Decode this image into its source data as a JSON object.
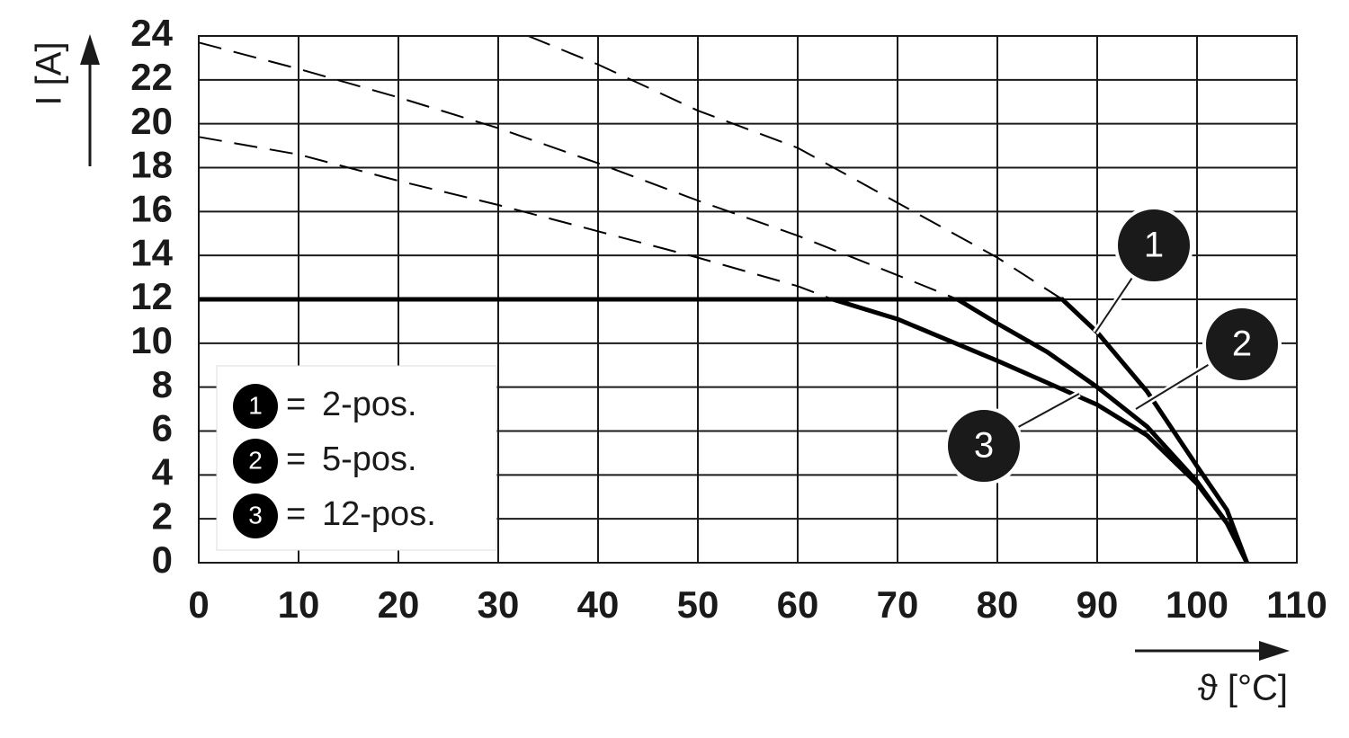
{
  "chart_data": {
    "type": "line",
    "x_label": "ϑ [°C]",
    "y_label": "I [A]",
    "xlim": [
      0,
      110
    ],
    "xticks": [
      0,
      10,
      20,
      30,
      40,
      50,
      60,
      70,
      80,
      90,
      100,
      110
    ],
    "ylim": [
      0,
      24
    ],
    "yticks": [
      0,
      2,
      4,
      6,
      8,
      10,
      12,
      14,
      16,
      18,
      20,
      22,
      24
    ],
    "grid": true,
    "legend_separator": "=",
    "series": [
      {
        "name": "2-pos.",
        "marker": "1",
        "color": "#000000",
        "x": [
          0,
          86.5,
          90,
          95,
          100,
          103,
          105
        ],
        "values": [
          12,
          12,
          10.5,
          7.8,
          4.4,
          2.4,
          0
        ],
        "extension_x": [
          33,
          40,
          50,
          60,
          70,
          80,
          86.5
        ],
        "extension_values": [
          24,
          22.7,
          20.6,
          18.9,
          16.4,
          13.9,
          12
        ]
      },
      {
        "name": "5-pos.",
        "marker": "2",
        "color": "#000000",
        "x": [
          0,
          76,
          80,
          85,
          90,
          95,
          100,
          103,
          105
        ],
        "values": [
          12,
          12,
          10.9,
          9.6,
          8,
          6.2,
          3.7,
          1.8,
          0
        ],
        "extension_x": [
          0,
          10,
          20,
          30,
          40,
          50,
          60,
          70,
          76
        ],
        "extension_values": [
          23.7,
          22.5,
          21.2,
          19.8,
          18.2,
          16.5,
          14.9,
          13.1,
          12
        ]
      },
      {
        "name": "12-pos.",
        "marker": "3",
        "color": "#000000",
        "x": [
          0,
          63.5,
          70,
          80,
          90,
          95,
          100,
          103,
          105
        ],
        "values": [
          12,
          12,
          11.1,
          9.2,
          7.2,
          5.8,
          3.6,
          1.8,
          0
        ],
        "extension_x": [
          0,
          10,
          20,
          30,
          40,
          50,
          60,
          63.5
        ],
        "extension_values": [
          19.4,
          18.6,
          17.4,
          16.3,
          15.1,
          13.9,
          12.6,
          12
        ]
      }
    ]
  }
}
